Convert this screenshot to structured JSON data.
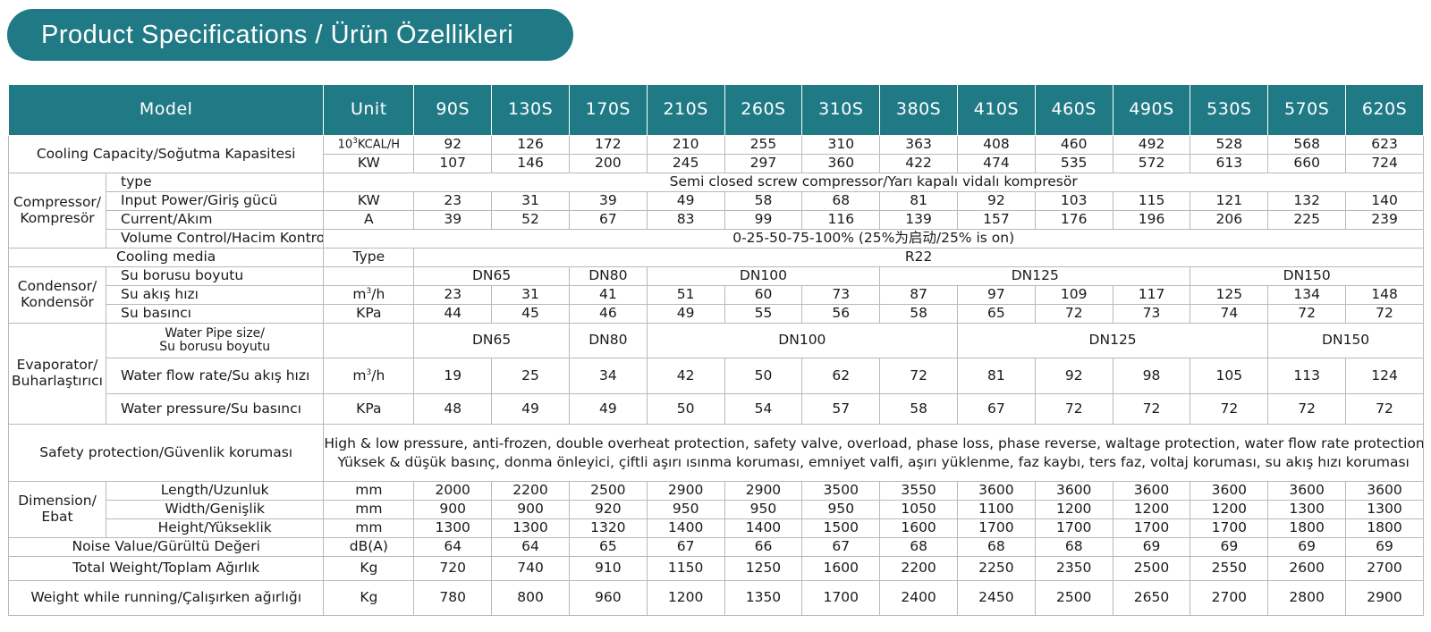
{
  "title": "Product Specifications / Ürün Özellikleri",
  "header": {
    "model": "Model",
    "unit": "Unit",
    "models": [
      "90S",
      "130S",
      "170S",
      "210S",
      "260S",
      "310S",
      "380S",
      "410S",
      "460S",
      "490S",
      "530S",
      "570S",
      "620S"
    ]
  },
  "cooling_capacity": {
    "label": "Cooling Capacity/Soğutma Kapasitesi",
    "unit_kcal_prefix": "10",
    "unit_kcal_sup": "3",
    "unit_kcal_suffix": "KCAL/H",
    "kcal": [
      "92",
      "126",
      "172",
      "210",
      "255",
      "310",
      "363",
      "408",
      "460",
      "492",
      "528",
      "568",
      "623"
    ],
    "unit_kw": "KW",
    "kw": [
      "107",
      "146",
      "200",
      "245",
      "297",
      "360",
      "422",
      "474",
      "535",
      "572",
      "613",
      "660",
      "724"
    ]
  },
  "compressor": {
    "label": "Compressor/ Kompresör",
    "type_label": "type",
    "type_value": "Semi closed screw compressor/Yarı kapalı vidalı kompresör",
    "power_label": "Input Power/Giriş gücü",
    "power_unit": "KW",
    "power": [
      "23",
      "31",
      "39",
      "49",
      "58",
      "68",
      "81",
      "92",
      "103",
      "115",
      "121",
      "132",
      "140"
    ],
    "current_label": "Current/Akım",
    "current_unit": "A",
    "current": [
      "39",
      "52",
      "67",
      "83",
      "99",
      "116",
      "139",
      "157",
      "176",
      "196",
      "206",
      "225",
      "239"
    ],
    "volume_label": "Volume Control/Hacim Kontrolü",
    "volume_value": "0-25-50-75-100% (25%为启动/25% is on)"
  },
  "cooling_media": {
    "label": "Cooling media",
    "unit": "Type",
    "value": "R22"
  },
  "condensor": {
    "label": "Condensor/ Kondensör",
    "pipe_label": "Su borusu boyutu",
    "pipe": [
      "DN65",
      "DN80",
      "DN100",
      "DN125",
      "DN150"
    ],
    "flow_label": "Su akış hızı",
    "flow_unit_base": "m",
    "flow_unit_sup": "3",
    "flow_unit_tail": "/h",
    "flow": [
      "23",
      "31",
      "41",
      "51",
      "60",
      "73",
      "87",
      "97",
      "109",
      "117",
      "125",
      "134",
      "148"
    ],
    "pressure_label": "Su basıncı",
    "pressure_unit": "KPa",
    "pressure": [
      "44",
      "45",
      "46",
      "49",
      "55",
      "56",
      "58",
      "65",
      "72",
      "73",
      "74",
      "72",
      "72"
    ]
  },
  "evaporator": {
    "label": "Evaporator/ Buharlaştırıcı",
    "pipe_label_1": "Water Pipe size/",
    "pipe_label_2": "Su borusu boyutu",
    "pipe": [
      "DN65",
      "DN80",
      "DN100",
      "DN125",
      "DN150"
    ],
    "flow_label": "Water flow rate/Su akış hızı",
    "flow_unit_base": "m",
    "flow_unit_sup": "3",
    "flow_unit_tail": "/h",
    "flow": [
      "19",
      "25",
      "34",
      "42",
      "50",
      "62",
      "72",
      "81",
      "92",
      "98",
      "105",
      "113",
      "124"
    ],
    "pressure_label": "Water pressure/Su basıncı",
    "pressure_unit": "KPa",
    "pressure": [
      "48",
      "49",
      "49",
      "50",
      "54",
      "57",
      "58",
      "67",
      "72",
      "72",
      "72",
      "72",
      "72"
    ]
  },
  "safety": {
    "label": "Safety protection/Güvenlik koruması",
    "line1": "High & low pressure, anti-frozen, double overheat protection, safety valve, overload, phase loss, phase reverse, waltage protection, water flow rate protection /",
    "line2": "Yüksek & düşük basınç, donma önleyici, çiftli aşırı ısınma koruması, emniyet valfi, aşırı yüklenme, faz kaybı, ters faz, voltaj koruması, su akış hızı koruması"
  },
  "dimension": {
    "label": "Dimension/ Ebat",
    "length_label": "Length/Uzunluk",
    "length_unit": "mm",
    "length": [
      "2000",
      "2200",
      "2500",
      "2900",
      "2900",
      "3500",
      "3550",
      "3600",
      "3600",
      "3600",
      "3600",
      "3600",
      "3600"
    ],
    "width_label": "Width/Genişlik",
    "width_unit": "mm",
    "width": [
      "900",
      "900",
      "920",
      "950",
      "950",
      "950",
      "1050",
      "1100",
      "1200",
      "1200",
      "1200",
      "1300",
      "1300"
    ],
    "height_label": "Height/Yükseklik",
    "height_unit": "mm",
    "height": [
      "1300",
      "1300",
      "1320",
      "1400",
      "1400",
      "1500",
      "1600",
      "1700",
      "1700",
      "1700",
      "1700",
      "1800",
      "1800"
    ]
  },
  "noise": {
    "label": "Noise Value/Gürültü Değeri",
    "unit": "dB(A)",
    "values": [
      "64",
      "64",
      "65",
      "67",
      "66",
      "67",
      "68",
      "68",
      "68",
      "69",
      "69",
      "69",
      "69"
    ]
  },
  "total_weight": {
    "label": "Total Weight/Toplam Ağırlık",
    "unit": "Kg",
    "values": [
      "720",
      "740",
      "910",
      "1150",
      "1250",
      "1600",
      "2200",
      "2250",
      "2350",
      "2500",
      "2550",
      "2600",
      "2700"
    ]
  },
  "running_weight": {
    "label": "Weight while running/Çalışırken ağırlığı",
    "unit": "Kg",
    "values": [
      "780",
      "800",
      "960",
      "1200",
      "1350",
      "1700",
      "2400",
      "2450",
      "2500",
      "2650",
      "2700",
      "2800",
      "2900"
    ]
  }
}
